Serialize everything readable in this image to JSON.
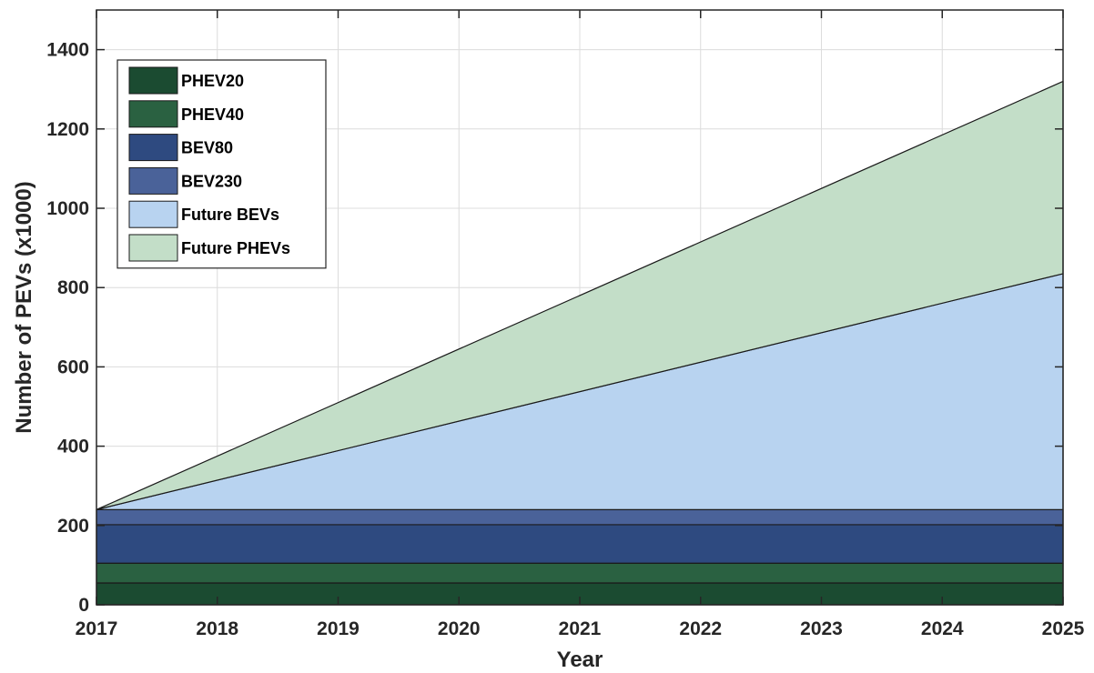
{
  "chart_data": {
    "type": "area",
    "stacked": true,
    "xlabel": "Year",
    "ylabel": "Number of PEVs (x1000)",
    "xlim": [
      2017,
      2025
    ],
    "ylim": [
      0,
      1500
    ],
    "xticks": [
      2017,
      2018,
      2019,
      2020,
      2021,
      2022,
      2023,
      2024,
      2025
    ],
    "yticks": [
      0,
      200,
      400,
      600,
      800,
      1000,
      1200,
      1400
    ],
    "grid": true,
    "legend_position": "top-left",
    "x": [
      2017,
      2025
    ],
    "series": [
      {
        "name": "PHEV20",
        "color": "#1b4b31",
        "values": [
          55,
          55
        ]
      },
      {
        "name": "PHEV40",
        "color": "#2a6141",
        "values": [
          50,
          50
        ]
      },
      {
        "name": "BEV80",
        "color": "#2e4a80",
        "values": [
          97,
          97
        ]
      },
      {
        "name": "BEV230",
        "color": "#4a6299",
        "values": [
          38,
          38
        ]
      },
      {
        "name": "Future BEVs",
        "color": "#b8d3f0",
        "values": [
          0,
          595
        ]
      },
      {
        "name": "Future PHEVs",
        "color": "#c3dec8",
        "values": [
          0,
          485
        ]
      }
    ]
  }
}
